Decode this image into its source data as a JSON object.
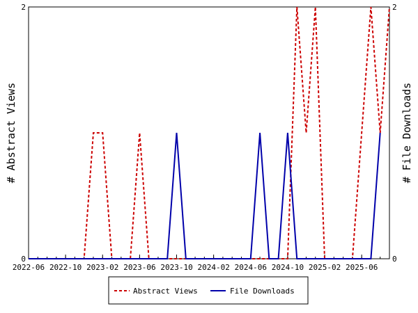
{
  "chart_data": {
    "type": "line",
    "title": "",
    "ylabel_left": "# Abstract Views",
    "ylabel_right": "# File Downloads",
    "xlabel": "",
    "ylim": [
      0,
      2
    ],
    "y_ticks": [
      "0",
      "2"
    ],
    "x_ticks": [
      "2022-06",
      "2022-10",
      "2023-02",
      "2023-06",
      "2023-10",
      "2024-02",
      "2024-06",
      "2024-10",
      "2025-02",
      "2025-06"
    ],
    "x_start": "2022-06",
    "x_end": "2025-08",
    "grid": false,
    "legend_position": "bottom",
    "series": [
      {
        "name": "Abstract Views",
        "color": "#cc0000",
        "dash": "dashed",
        "axis": "left",
        "points": [
          [
            "2022-06",
            0
          ],
          [
            "2022-12",
            0
          ],
          [
            "2023-01",
            1
          ],
          [
            "2023-02",
            1
          ],
          [
            "2023-03",
            0
          ],
          [
            "2023-05",
            0
          ],
          [
            "2023-06",
            1
          ],
          [
            "2023-07",
            0
          ],
          [
            "2024-10",
            0
          ],
          [
            "2024-11",
            2
          ],
          [
            "2024-12",
            1
          ],
          [
            "2025-01",
            2
          ],
          [
            "2025-02",
            0
          ],
          [
            "2025-05",
            0
          ],
          [
            "2025-07",
            2
          ],
          [
            "2025-08",
            1
          ],
          [
            "2025-09",
            2
          ]
        ]
      },
      {
        "name": "File Downloads",
        "color": "#0000aa",
        "dash": "solid",
        "axis": "right",
        "points": [
          [
            "2022-06",
            0
          ],
          [
            "2023-09",
            0
          ],
          [
            "2023-10",
            1
          ],
          [
            "2023-11",
            0
          ],
          [
            "2024-06",
            0
          ],
          [
            "2024-07",
            1
          ],
          [
            "2024-08",
            0
          ],
          [
            "2024-09",
            0
          ],
          [
            "2024-10",
            1
          ],
          [
            "2024-11",
            0
          ],
          [
            "2025-07",
            0
          ],
          [
            "2025-08",
            1
          ]
        ]
      }
    ]
  }
}
